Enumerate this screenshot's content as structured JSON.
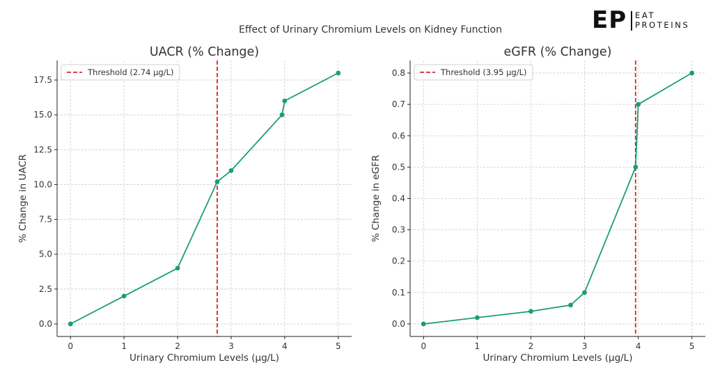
{
  "suptitle": "Effect of Urinary Chromium Levels on Kidney Function",
  "brand": {
    "mark": "EP",
    "line1": "EAT",
    "line2": "PROTEINS"
  },
  "colors": {
    "series": "#1a9e73",
    "threshold": "#d62728",
    "grid": "#cccccc",
    "axis": "#222222"
  },
  "chart_data": [
    {
      "type": "line",
      "title": "UACR (% Change)",
      "xlabel": "Urinary Chromium Levels (μg/L)",
      "ylabel": "% Change in UACR",
      "x": [
        0,
        1,
        2,
        2.74,
        3,
        3.95,
        4,
        5
      ],
      "y": [
        0,
        2,
        4,
        10.2,
        11,
        15,
        16,
        18
      ],
      "xlim": [
        -0.25,
        5.25
      ],
      "ylim": [
        -0.9,
        18.9
      ],
      "xticks": [
        0,
        1,
        2,
        3,
        4,
        5
      ],
      "xticklabels": [
        "0",
        "1",
        "2",
        "3",
        "4",
        "5"
      ],
      "yticks": [
        0,
        2.5,
        5,
        7.5,
        10,
        12.5,
        15,
        17.5
      ],
      "yticklabels": [
        "0.0",
        "2.5",
        "5.0",
        "7.5",
        "10.0",
        "12.5",
        "15.0",
        "17.5"
      ],
      "threshold": {
        "x": 2.74,
        "label": "Threshold (2.74 μg/L)"
      },
      "legend": "top-left",
      "grid": true
    },
    {
      "type": "line",
      "title": "eGFR (% Change)",
      "xlabel": "Urinary Chromium Levels (μg/L)",
      "ylabel": "% Change in eGFR",
      "x": [
        0,
        1,
        2,
        2.74,
        3,
        3.95,
        4,
        5
      ],
      "y": [
        0,
        0.02,
        0.04,
        0.06,
        0.1,
        0.5,
        0.7,
        0.8
      ],
      "xlim": [
        -0.25,
        5.25
      ],
      "ylim": [
        -0.04,
        0.84
      ],
      "xticks": [
        0,
        1,
        2,
        3,
        4,
        5
      ],
      "xticklabels": [
        "0",
        "1",
        "2",
        "3",
        "4",
        "5"
      ],
      "yticks": [
        0,
        0.1,
        0.2,
        0.3,
        0.4,
        0.5,
        0.6,
        0.7,
        0.8
      ],
      "yticklabels": [
        "0.0",
        "0.1",
        "0.2",
        "0.3",
        "0.4",
        "0.5",
        "0.6",
        "0.7",
        "0.8"
      ],
      "threshold": {
        "x": 3.95,
        "label": "Threshold (3.95 μg/L)"
      },
      "legend": "top-left",
      "grid": true
    }
  ]
}
